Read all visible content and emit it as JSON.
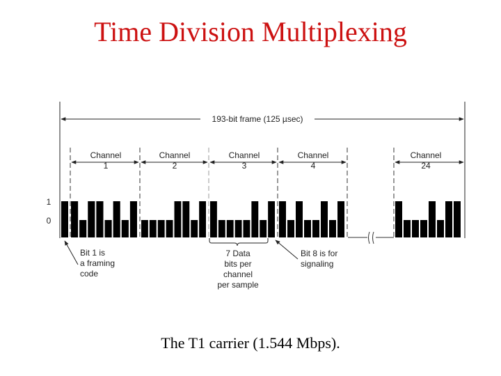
{
  "slide": {
    "title": "Time Division Multiplexing",
    "caption": "The T1 carrier (1.544 Mbps)."
  },
  "diagram": {
    "frame_label": "193-bit frame  (125 µsec)",
    "channels": [
      {
        "label": "Channel",
        "number": "1"
      },
      {
        "label": "Channel",
        "number": "2"
      },
      {
        "label": "Channel",
        "number": "3"
      },
      {
        "label": "Channel",
        "number": "4"
      },
      {
        "label": "Channel",
        "number": "24"
      }
    ],
    "level_high": "1",
    "level_low": "0",
    "framing_bit": "1",
    "channel_bits": [
      "10110101",
      "00001101",
      "10000101",
      "10100101",
      "10001011"
    ],
    "annotations": {
      "bit1": [
        "Bit 1 is",
        "a framing",
        "code"
      ],
      "data": [
        "7 Data",
        "bits per",
        "channel",
        "per sample"
      ],
      "bit8": [
        "Bit 8 is for",
        "signaling"
      ]
    },
    "colors": {
      "title": "#cc1111",
      "bars": "#000000",
      "lines": "#222222"
    }
  }
}
